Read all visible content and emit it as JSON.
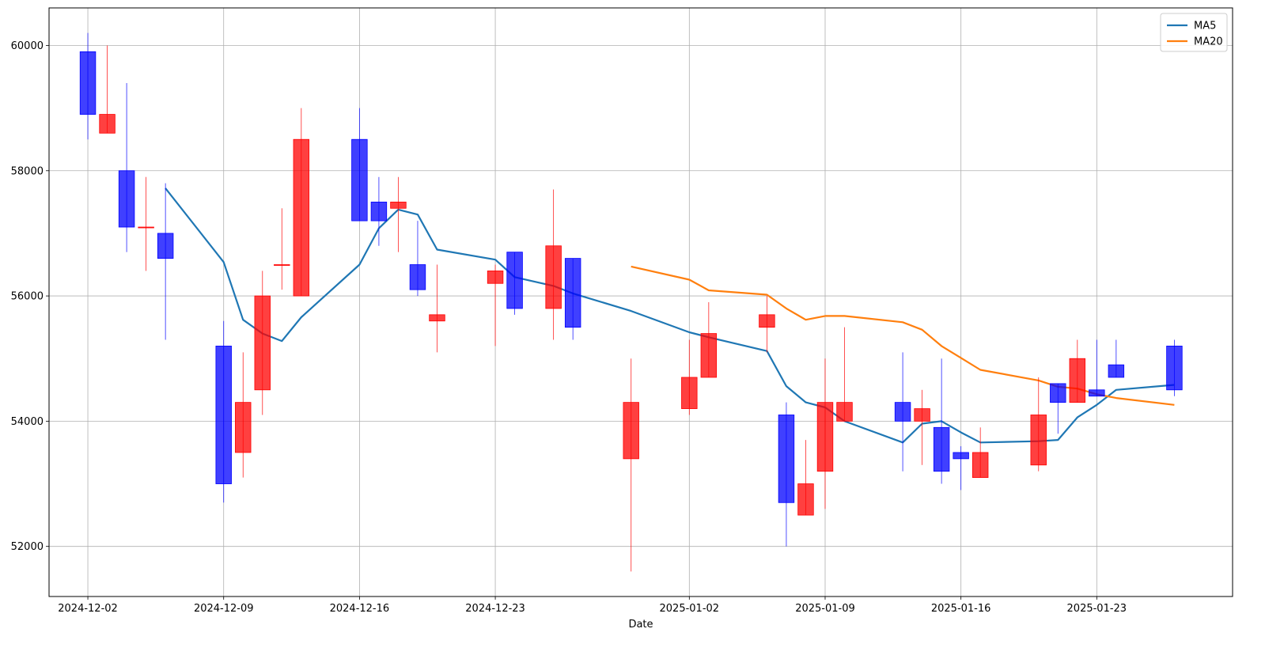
{
  "chart_data": {
    "type": "candlestick",
    "xlabel": "Date",
    "ylabel": "",
    "x_range": [
      "2024-11-30",
      "2025-01-30"
    ],
    "ylim": [
      51200,
      60600
    ],
    "grid": true,
    "legend_position": "top-right",
    "x_ticks": [
      "2024-12-02",
      "2024-12-09",
      "2024-12-16",
      "2024-12-23",
      "2025-01-02",
      "2025-01-09",
      "2025-01-16",
      "2025-01-23"
    ],
    "y_ticks": [
      52000,
      54000,
      56000,
      58000,
      60000
    ],
    "colors": {
      "up": "#ff0000",
      "down": "#0000ff",
      "ma5": "#1f77b4",
      "ma20": "#ff7f0e",
      "grid": "#b0b0b0"
    },
    "candles": [
      {
        "date": "2024-12-02",
        "open": 59900,
        "high": 60200,
        "low": 58500,
        "close": 58900
      },
      {
        "date": "2024-12-03",
        "open": 58600,
        "high": 60000,
        "low": 58600,
        "close": 58900
      },
      {
        "date": "2024-12-04",
        "open": 58000,
        "high": 59400,
        "low": 56700,
        "close": 57100
      },
      {
        "date": "2024-12-05",
        "open": 57100,
        "high": 57900,
        "low": 56400,
        "close": 57100
      },
      {
        "date": "2024-12-06",
        "open": 57000,
        "high": 57800,
        "low": 55300,
        "close": 56600
      },
      {
        "date": "2024-12-09",
        "open": 55200,
        "high": 55600,
        "low": 52700,
        "close": 53000
      },
      {
        "date": "2024-12-10",
        "open": 53500,
        "high": 55100,
        "low": 53100,
        "close": 54300
      },
      {
        "date": "2024-12-11",
        "open": 54500,
        "high": 56400,
        "low": 54100,
        "close": 56000
      },
      {
        "date": "2024-12-12",
        "open": 56500,
        "high": 57400,
        "low": 56100,
        "close": 56500
      },
      {
        "date": "2024-12-13",
        "open": 56000,
        "high": 59000,
        "low": 56000,
        "close": 58500
      },
      {
        "date": "2024-12-16",
        "open": 58500,
        "high": 59000,
        "low": 57200,
        "close": 57200
      },
      {
        "date": "2024-12-17",
        "open": 57500,
        "high": 57900,
        "low": 56800,
        "close": 57200
      },
      {
        "date": "2024-12-18",
        "open": 57400,
        "high": 57900,
        "low": 56700,
        "close": 57500
      },
      {
        "date": "2024-12-19",
        "open": 56500,
        "high": 57200,
        "low": 56000,
        "close": 56100
      },
      {
        "date": "2024-12-20",
        "open": 55600,
        "high": 56500,
        "low": 55100,
        "close": 55700
      },
      {
        "date": "2024-12-23",
        "open": 56200,
        "high": 56500,
        "low": 55200,
        "close": 56400
      },
      {
        "date": "2024-12-24",
        "open": 56700,
        "high": 56700,
        "low": 55700,
        "close": 55800
      },
      {
        "date": "2024-12-26",
        "open": 55800,
        "high": 57700,
        "low": 55300,
        "close": 56800
      },
      {
        "date": "2024-12-27",
        "open": 56600,
        "high": 56600,
        "low": 55300,
        "close": 55500
      },
      {
        "date": "2024-12-30",
        "open": 53400,
        "high": 55000,
        "low": 51600,
        "close": 54300
      },
      {
        "date": "2025-01-02",
        "open": 54200,
        "high": 55300,
        "low": 54100,
        "close": 54700
      },
      {
        "date": "2025-01-03",
        "open": 54700,
        "high": 55900,
        "low": 54700,
        "close": 55400
      },
      {
        "date": "2025-01-06",
        "open": 55500,
        "high": 56000,
        "low": 55100,
        "close": 55700
      },
      {
        "date": "2025-01-07",
        "open": 54100,
        "high": 54300,
        "low": 52000,
        "close": 52700
      },
      {
        "date": "2025-01-08",
        "open": 52500,
        "high": 53700,
        "low": 52500,
        "close": 53000
      },
      {
        "date": "2025-01-09",
        "open": 53200,
        "high": 55000,
        "low": 52600,
        "close": 54300
      },
      {
        "date": "2025-01-10",
        "open": 54000,
        "high": 55500,
        "low": 54000,
        "close": 54300
      },
      {
        "date": "2025-01-13",
        "open": 54300,
        "high": 55100,
        "low": 53200,
        "close": 54000
      },
      {
        "date": "2025-01-14",
        "open": 54000,
        "high": 54500,
        "low": 53300,
        "close": 54200
      },
      {
        "date": "2025-01-15",
        "open": 53900,
        "high": 55000,
        "low": 53000,
        "close": 53200
      },
      {
        "date": "2025-01-16",
        "open": 53500,
        "high": 53600,
        "low": 52900,
        "close": 53400
      },
      {
        "date": "2025-01-17",
        "open": 53100,
        "high": 53900,
        "low": 53100,
        "close": 53500
      },
      {
        "date": "2025-01-20",
        "open": 53300,
        "high": 54700,
        "low": 53200,
        "close": 54100
      },
      {
        "date": "2025-01-21",
        "open": 54600,
        "high": 54600,
        "low": 53800,
        "close": 54300
      },
      {
        "date": "2025-01-22",
        "open": 54300,
        "high": 55300,
        "low": 54300,
        "close": 55000
      },
      {
        "date": "2025-01-23",
        "open": 54500,
        "high": 55300,
        "low": 54400,
        "close": 54400
      },
      {
        "date": "2025-01-24",
        "open": 54900,
        "high": 55300,
        "low": 54700,
        "close": 54700
      },
      {
        "date": "2025-01-27",
        "open": 55200,
        "high": 55300,
        "low": 54400,
        "close": 54500
      }
    ],
    "series": [
      {
        "name": "MA5",
        "points": [
          {
            "date": "2024-12-06",
            "value": 57720
          },
          {
            "date": "2024-12-09",
            "value": 56540
          },
          {
            "date": "2024-12-10",
            "value": 55620
          },
          {
            "date": "2024-12-11",
            "value": 55400
          },
          {
            "date": "2024-12-12",
            "value": 55280
          },
          {
            "date": "2024-12-13",
            "value": 55660
          },
          {
            "date": "2024-12-16",
            "value": 56500
          },
          {
            "date": "2024-12-17",
            "value": 57080
          },
          {
            "date": "2024-12-18",
            "value": 57380
          },
          {
            "date": "2024-12-19",
            "value": 57300
          },
          {
            "date": "2024-12-20",
            "value": 56740
          },
          {
            "date": "2024-12-23",
            "value": 56580
          },
          {
            "date": "2024-12-24",
            "value": 56300
          },
          {
            "date": "2024-12-26",
            "value": 56160
          },
          {
            "date": "2024-12-27",
            "value": 56040
          },
          {
            "date": "2024-12-30",
            "value": 55760
          },
          {
            "date": "2025-01-02",
            "value": 55420
          },
          {
            "date": "2025-01-03",
            "value": 55340
          },
          {
            "date": "2025-01-06",
            "value": 55120
          },
          {
            "date": "2025-01-07",
            "value": 54560
          },
          {
            "date": "2025-01-08",
            "value": 54300
          },
          {
            "date": "2025-01-09",
            "value": 54220
          },
          {
            "date": "2025-01-10",
            "value": 54000
          },
          {
            "date": "2025-01-13",
            "value": 53660
          },
          {
            "date": "2025-01-14",
            "value": 53960
          },
          {
            "date": "2025-01-15",
            "value": 54000
          },
          {
            "date": "2025-01-16",
            "value": 53820
          },
          {
            "date": "2025-01-17",
            "value": 53660
          },
          {
            "date": "2025-01-20",
            "value": 53680
          },
          {
            "date": "2025-01-21",
            "value": 53700
          },
          {
            "date": "2025-01-22",
            "value": 54060
          },
          {
            "date": "2025-01-23",
            "value": 54260
          },
          {
            "date": "2025-01-24",
            "value": 54500
          },
          {
            "date": "2025-01-27",
            "value": 54580
          }
        ]
      },
      {
        "name": "MA20",
        "points": [
          {
            "date": "2024-12-30",
            "value": 56470
          },
          {
            "date": "2025-01-02",
            "value": 56260
          },
          {
            "date": "2025-01-03",
            "value": 56090
          },
          {
            "date": "2025-01-06",
            "value": 56020
          },
          {
            "date": "2025-01-07",
            "value": 55800
          },
          {
            "date": "2025-01-08",
            "value": 55620
          },
          {
            "date": "2025-01-09",
            "value": 55680
          },
          {
            "date": "2025-01-10",
            "value": 55680
          },
          {
            "date": "2025-01-13",
            "value": 55580
          },
          {
            "date": "2025-01-14",
            "value": 55460
          },
          {
            "date": "2025-01-15",
            "value": 55200
          },
          {
            "date": "2025-01-16",
            "value": 55010
          },
          {
            "date": "2025-01-17",
            "value": 54820
          },
          {
            "date": "2025-01-20",
            "value": 54650
          },
          {
            "date": "2025-01-21",
            "value": 54550
          },
          {
            "date": "2025-01-22",
            "value": 54520
          },
          {
            "date": "2025-01-23",
            "value": 54430
          },
          {
            "date": "2025-01-24",
            "value": 54370
          },
          {
            "date": "2025-01-27",
            "value": 54260
          }
        ]
      }
    ]
  }
}
